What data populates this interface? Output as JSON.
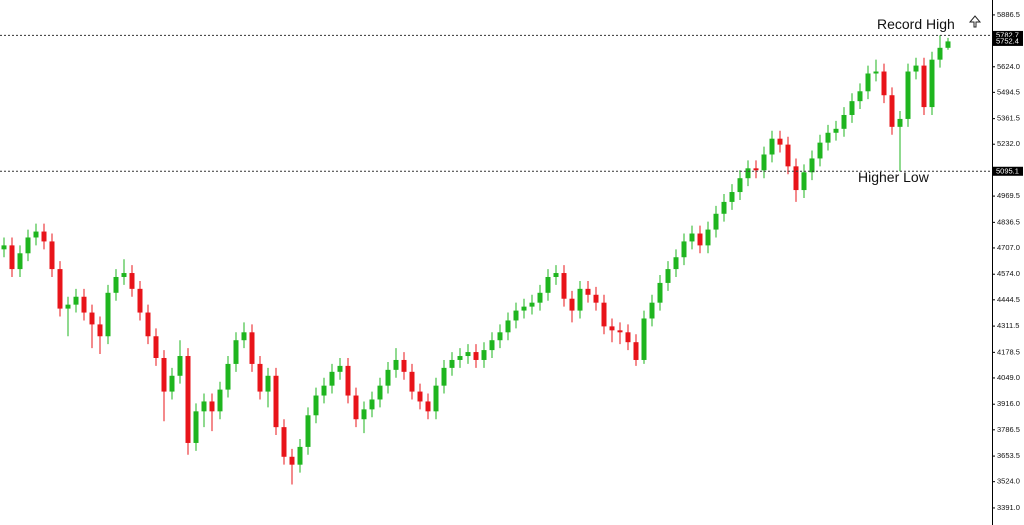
{
  "chart_data": {
    "type": "candlestick",
    "up_color": "#1fb51f",
    "down_color": "#e8141a",
    "ylim": [
      3330,
      5962
    ],
    "yticks": [
      5886.5,
      {
        "value": 5624.0,
        "label": "5624.0"
      },
      5494.5,
      5361.5,
      {
        "value": 5232.0,
        "label": "5232.0"
      },
      4969.5,
      4836.5,
      {
        "value": 4707.0,
        "label": "4707.0"
      },
      {
        "value": 4574.0,
        "label": "4574.0"
      },
      4444.5,
      4311.5,
      4178.5,
      {
        "value": 4049.0,
        "label": "4049.0"
      },
      {
        "value": 3916.0,
        "label": "3916.0"
      },
      3786.5,
      3653.5,
      {
        "value": 3524.0,
        "label": "3524.0"
      },
      {
        "value": 3391.0,
        "label": "3391.0"
      }
    ],
    "levels": [
      {
        "label": "Record High",
        "value": 5782.7
      },
      {
        "label": "Higher Low",
        "value": 5095.1
      }
    ],
    "last_price": 5752.4,
    "open": [
      4700,
      4720,
      4600,
      4680,
      4760,
      4790,
      4740,
      4600,
      4400,
      4420,
      4460,
      4380,
      4320,
      4260,
      4480,
      4560,
      4580,
      4500,
      4380,
      4260,
      4150,
      3980,
      4060,
      4160,
      3720,
      3880,
      3930,
      3880,
      3990,
      4120,
      4240,
      4280,
      4120,
      3980,
      4060,
      3800,
      3650,
      3610,
      3700,
      3860,
      3960,
      4010,
      4080,
      4110,
      3960,
      3840,
      3890,
      3940,
      4010,
      4090,
      4140,
      4080,
      3980,
      3930,
      3880,
      4010,
      4100,
      4140,
      4160,
      4180,
      4140,
      4190,
      4240,
      4280,
      4340,
      4390,
      4410,
      4430,
      4480,
      4560,
      4580,
      4450,
      4390,
      4500,
      4470,
      4430,
      4310,
      4290,
      4280,
      4230,
      4140,
      4350,
      4430,
      4530,
      4600,
      4660,
      4740,
      4780,
      4720,
      4800,
      4880,
      4940,
      4990,
      5060,
      5110,
      5100,
      5180,
      5260,
      5230,
      5120,
      5000,
      5090,
      5160,
      5240,
      5290,
      5310,
      5380,
      5450,
      5500,
      5590,
      5600,
      5480,
      5320,
      5360,
      5600,
      5630,
      5420,
      5660,
      5720
    ],
    "high": [
      4760,
      4760,
      4720,
      4800,
      4830,
      4830,
      4780,
      4640,
      4460,
      4500,
      4500,
      4420,
      4360,
      4520,
      4600,
      4650,
      4620,
      4540,
      4420,
      4300,
      4190,
      4100,
      4240,
      4200,
      3920,
      3970,
      3970,
      4030,
      4160,
      4280,
      4330,
      4320,
      4160,
      4100,
      4100,
      3840,
      3690,
      3740,
      3900,
      4000,
      4050,
      4120,
      4150,
      4150,
      4000,
      3930,
      3980,
      4050,
      4130,
      4200,
      4180,
      4120,
      4020,
      3970,
      4050,
      4140,
      4180,
      4200,
      4220,
      4220,
      4230,
      4280,
      4320,
      4380,
      4430,
      4450,
      4470,
      4520,
      4600,
      4620,
      4620,
      4490,
      4540,
      4540,
      4510,
      4470,
      4350,
      4330,
      4320,
      4270,
      4390,
      4470,
      4570,
      4640,
      4700,
      4780,
      4820,
      4820,
      4840,
      4920,
      4980,
      5030,
      5100,
      5150,
      5150,
      5220,
      5300,
      5300,
      5270,
      5160,
      5130,
      5200,
      5280,
      5330,
      5350,
      5420,
      5490,
      5540,
      5630,
      5660,
      5640,
      5520,
      5400,
      5640,
      5670,
      5670,
      5700,
      5782.7,
      5770
    ],
    "low": [
      4660,
      4560,
      4560,
      4640,
      4720,
      4700,
      4560,
      4360,
      4260,
      4380,
      4340,
      4200,
      4170,
      4220,
      4440,
      4520,
      4460,
      4340,
      4220,
      4110,
      3830,
      3940,
      4020,
      3660,
      3680,
      3800,
      3780,
      3840,
      3950,
      4080,
      4200,
      4080,
      3940,
      3900,
      3760,
      3610,
      3510,
      3570,
      3660,
      3820,
      3920,
      3970,
      4040,
      3920,
      3800,
      3770,
      3850,
      3900,
      3970,
      4050,
      4040,
      3940,
      3890,
      3840,
      3840,
      3970,
      4060,
      4100,
      4120,
      4100,
      4100,
      4150,
      4200,
      4240,
      4300,
      4350,
      4370,
      4390,
      4440,
      4520,
      4410,
      4330,
      4350,
      4430,
      4390,
      4270,
      4230,
      4220,
      4190,
      4110,
      4120,
      4310,
      4390,
      4490,
      4560,
      4620,
      4700,
      4680,
      4680,
      4760,
      4840,
      4900,
      4950,
      5020,
      5060,
      5060,
      5140,
      5190,
      5080,
      4940,
      4960,
      5050,
      5120,
      5200,
      5250,
      5270,
      5340,
      5410,
      5460,
      5550,
      5440,
      5280,
      5095.1,
      5320,
      5560,
      5380,
      5380,
      5620,
      5710
    ],
    "close": [
      4720,
      4600,
      4680,
      4760,
      4790,
      4740,
      4600,
      4400,
      4420,
      4460,
      4380,
      4320,
      4260,
      4480,
      4560,
      4580,
      4500,
      4380,
      4260,
      4150,
      3980,
      4060,
      4160,
      3720,
      3880,
      3930,
      3880,
      3990,
      4120,
      4240,
      4280,
      4120,
      3980,
      4060,
      3800,
      3650,
      3610,
      3700,
      3860,
      3960,
      4010,
      4080,
      4110,
      3960,
      3840,
      3890,
      3940,
      4010,
      4090,
      4140,
      4080,
      3980,
      3930,
      3880,
      4010,
      4100,
      4140,
      4160,
      4180,
      4140,
      4190,
      4240,
      4280,
      4340,
      4390,
      4410,
      4430,
      4480,
      4560,
      4580,
      4450,
      4390,
      4500,
      4470,
      4430,
      4310,
      4290,
      4280,
      4230,
      4140,
      4350,
      4430,
      4530,
      4600,
      4660,
      4740,
      4780,
      4720,
      4800,
      4880,
      4940,
      4990,
      5060,
      5110,
      5100,
      5180,
      5260,
      5230,
      5120,
      5000,
      5090,
      5160,
      5240,
      5290,
      5310,
      5380,
      5450,
      5500,
      5590,
      5600,
      5480,
      5320,
      5360,
      5600,
      5630,
      5420,
      5660,
      5720,
      5752.4
    ]
  }
}
